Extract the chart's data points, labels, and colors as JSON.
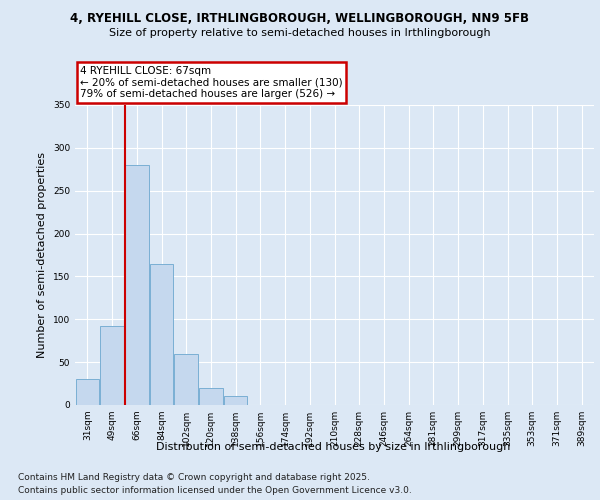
{
  "title_line1": "4, RYEHILL CLOSE, IRTHLINGBOROUGH, WELLINGBOROUGH, NN9 5FB",
  "title_line2": "Size of property relative to semi-detached houses in Irthlingborough",
  "xlabel": "Distribution of semi-detached houses by size in Irthlingborough",
  "ylabel": "Number of semi-detached properties",
  "categories": [
    "31sqm",
    "49sqm",
    "66sqm",
    "84sqm",
    "102sqm",
    "120sqm",
    "138sqm",
    "156sqm",
    "174sqm",
    "192sqm",
    "210sqm",
    "228sqm",
    "246sqm",
    "264sqm",
    "281sqm",
    "299sqm",
    "317sqm",
    "335sqm",
    "353sqm",
    "371sqm",
    "389sqm"
  ],
  "values": [
    30,
    92,
    280,
    165,
    60,
    20,
    10,
    0,
    0,
    0,
    0,
    0,
    0,
    0,
    0,
    0,
    0,
    0,
    0,
    0,
    0
  ],
  "bar_color": "#c5d8ee",
  "bar_edge_color": "#7aafd4",
  "highlight_bar_index": 2,
  "highlight_color": "#cc0000",
  "annotation_title": "4 RYEHILL CLOSE: 67sqm",
  "annotation_line1": "← 20% of semi-detached houses are smaller (130)",
  "annotation_line2": "79% of semi-detached houses are larger (526) →",
  "annotation_box_color": "#cc0000",
  "ylim": [
    0,
    350
  ],
  "yticks": [
    0,
    50,
    100,
    150,
    200,
    250,
    300,
    350
  ],
  "footer_line1": "Contains HM Land Registry data © Crown copyright and database right 2025.",
  "footer_line2": "Contains public sector information licensed under the Open Government Licence v3.0.",
  "bg_color": "#dce8f5",
  "plot_bg_color": "#dce8f5",
  "grid_color": "#ffffff",
  "title_fontsize": 8.5,
  "subtitle_fontsize": 8,
  "axis_label_fontsize": 8,
  "tick_fontsize": 6.5,
  "footer_fontsize": 6.5
}
